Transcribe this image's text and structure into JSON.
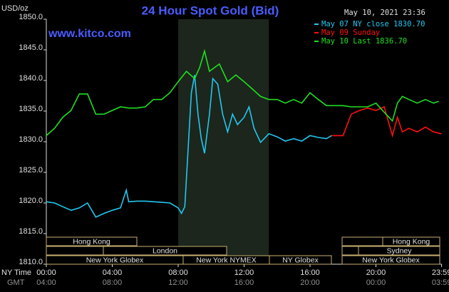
{
  "chart_data": {
    "type": "line",
    "title": "24 Hour Spot Gold (Bid)",
    "y_unit": "USD/oz",
    "timestamp": "May 10, 2021 23:36",
    "watermark": "www.kitco.com",
    "x_label": "NY Time",
    "x2_label": "GMT",
    "xlim": [
      0,
      24
    ],
    "ylim": [
      1810,
      1850
    ],
    "yticks": [
      {
        "value": 1810,
        "label": "1810.0"
      },
      {
        "value": 1815,
        "label": "1815.0"
      },
      {
        "value": 1820,
        "label": "1820.0"
      },
      {
        "value": 1825,
        "label": "1825.0"
      },
      {
        "value": 1830,
        "label": "1830.0"
      },
      {
        "value": 1835,
        "label": "1835.0"
      },
      {
        "value": 1840,
        "label": "1840.0"
      },
      {
        "value": 1845,
        "label": "1845.0"
      },
      {
        "value": 1850,
        "label": "1850.0"
      }
    ],
    "xticks": [
      {
        "value": 0,
        "label": "00:00"
      },
      {
        "value": 4,
        "label": "04:00"
      },
      {
        "value": 8,
        "label": "08:00"
      },
      {
        "value": 12,
        "label": "12:00"
      },
      {
        "value": 16,
        "label": "16:00"
      },
      {
        "value": 20,
        "label": "20:00"
      },
      {
        "value": 23.983,
        "label": "23:59"
      }
    ],
    "x2ticks": [
      {
        "value": 0,
        "label": "04:00"
      },
      {
        "value": 4,
        "label": "08:00"
      },
      {
        "value": 8,
        "label": "12:00"
      },
      {
        "value": 12,
        "label": "16:00"
      },
      {
        "value": 16,
        "label": "20:00"
      },
      {
        "value": 20,
        "label": "00:00"
      },
      {
        "value": 23.983,
        "label": "03:59"
      }
    ],
    "highlight": [
      8,
      13.5
    ],
    "sessions": [
      "Hong Kong",
      "London",
      "New York Globex",
      "New York NYMEX",
      "NY Globex",
      "Hong Kong",
      "Sydney",
      "New York Globex"
    ],
    "series": [
      {
        "name": "May 07 NY close 1830.70",
        "color": "#22c8f0",
        "x": [
          0,
          0.5,
          1,
          1.5,
          2,
          2.5,
          3,
          3.5,
          4,
          4.5,
          4.85,
          5,
          5.5,
          6,
          7,
          7.5,
          8,
          8.2,
          8.4,
          8.6,
          8.8,
          9.0,
          9.2,
          9.4,
          9.6,
          9.9,
          10.1,
          10.4,
          10.7,
          11,
          11.3,
          11.6,
          12,
          12.3,
          12.6,
          13,
          13.5,
          14,
          14.5,
          15,
          15.5,
          16,
          16.5,
          17,
          17.3
        ],
        "values": [
          1820.2,
          1820.0,
          1819.4,
          1818.8,
          1819.2,
          1820.0,
          1817.7,
          1818.3,
          1818.8,
          1819.2,
          1822.1,
          1820.2,
          1820.3,
          1820.3,
          1820.1,
          1820.0,
          1819.2,
          1818.3,
          1819.4,
          1828.7,
          1838.0,
          1840.9,
          1834.5,
          1830.5,
          1828.1,
          1834.5,
          1840.3,
          1839.4,
          1834.5,
          1831.6,
          1834.5,
          1832.8,
          1834.0,
          1835.7,
          1832.2,
          1829.9,
          1831.3,
          1830.8,
          1830.1,
          1830.5,
          1830.1,
          1831.0,
          1830.7,
          1830.5,
          1831.0
        ]
      },
      {
        "name": "May 09 Sunday",
        "color": "#ff1010",
        "x": [
          17.3,
          18,
          18.5,
          19,
          19.5,
          20,
          20.5,
          21,
          21.3,
          21.6,
          22,
          22.5,
          23,
          23.5,
          23.98
        ],
        "values": [
          1831.0,
          1831.0,
          1834.5,
          1835.1,
          1835.5,
          1835.1,
          1835.7,
          1831.0,
          1834.0,
          1831.6,
          1832.2,
          1831.6,
          1832.4,
          1831.6,
          1831.3
        ]
      },
      {
        "name": "May 10 Last 1836.70",
        "color": "#20e020",
        "x": [
          0,
          0.5,
          1,
          1.5,
          2,
          2.5,
          3,
          3.5,
          4,
          4.5,
          5,
          5.5,
          6,
          6.5,
          7,
          7.5,
          8,
          8.5,
          9,
          9.3,
          9.6,
          9.9,
          10.2,
          10.5,
          11,
          11.5,
          12,
          12.5,
          13,
          13.5,
          14,
          14.5,
          15,
          15.5,
          16,
          16.5,
          17,
          17.5,
          18,
          18.5,
          19,
          19.5,
          20,
          20.5,
          21,
          21.3,
          21.6,
          22,
          22.5,
          23,
          23.5,
          23.8
        ],
        "values": [
          1831.0,
          1832.2,
          1834.0,
          1835.1,
          1837.8,
          1837.8,
          1834.5,
          1834.5,
          1835.1,
          1835.7,
          1835.5,
          1835.5,
          1835.7,
          1836.9,
          1836.9,
          1838.0,
          1839.8,
          1841.5,
          1840.3,
          1842.1,
          1844.8,
          1841.5,
          1842.1,
          1842.7,
          1839.8,
          1840.9,
          1839.8,
          1838.6,
          1837.4,
          1836.9,
          1836.9,
          1836.3,
          1836.9,
          1836.3,
          1838.0,
          1836.9,
          1835.9,
          1835.9,
          1835.9,
          1835.7,
          1835.7,
          1835.7,
          1836.3,
          1834.8,
          1833.4,
          1836.3,
          1837.4,
          1836.9,
          1836.3,
          1836.9,
          1836.3,
          1836.6
        ]
      }
    ]
  }
}
